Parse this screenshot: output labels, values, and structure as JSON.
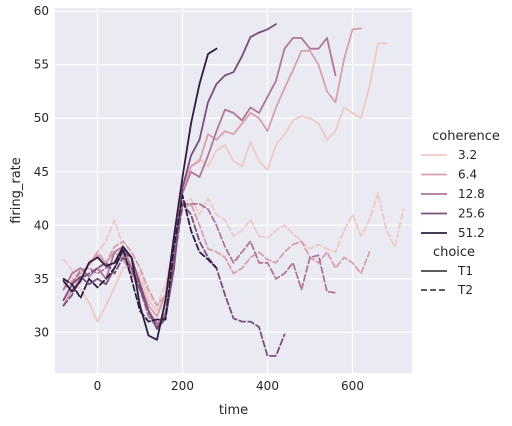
{
  "chart_data": {
    "type": "line",
    "xlabel": "time",
    "ylabel": "firing_rate",
    "xlim": [
      -100,
      740
    ],
    "ylim": [
      26.2,
      60.3
    ],
    "xticks": [
      0,
      200,
      400,
      600
    ],
    "yticks": [
      30,
      35,
      40,
      45,
      50,
      55,
      60
    ],
    "grid": true,
    "legend": {
      "placement": "right",
      "hue_title": "coherence",
      "style_title": "choice",
      "hue_entries": [
        {
          "label": "3.2",
          "color": "#f0c9c4"
        },
        {
          "label": "6.4",
          "color": "#d8a0ad"
        },
        {
          "label": "12.8",
          "color": "#b07598"
        },
        {
          "label": "25.6",
          "color": "#7a4e7c"
        },
        {
          "label": "51.2",
          "color": "#2d1e3e"
        }
      ],
      "style_entries": [
        {
          "label": "T1",
          "dash": "solid"
        },
        {
          "label": "T2",
          "dash": "dashed"
        }
      ]
    },
    "series": [
      {
        "coherence": "3.2",
        "choice": "T1",
        "color": "#f0c9c4",
        "dash": "solid",
        "x": [
          -80,
          -60,
          -40,
          -20,
          0,
          20,
          40,
          60,
          80,
          100,
          120,
          140,
          160,
          180,
          200,
          220,
          240,
          260,
          280,
          300,
          320,
          340,
          360,
          380,
          400,
          420,
          440,
          460,
          480,
          500,
          520,
          540,
          560,
          580,
          600,
          620,
          640,
          660,
          680
        ],
        "y": [
          34.5,
          35.2,
          34.0,
          32.8,
          31.0,
          32.5,
          34.2,
          36.0,
          36.5,
          35.0,
          33.0,
          32.0,
          33.5,
          38.0,
          44.0,
          45.5,
          46.2,
          45.5,
          47.0,
          47.5,
          46.0,
          45.5,
          47.8,
          46.0,
          45.2,
          47.5,
          48.5,
          49.8,
          50.2,
          50.0,
          49.5,
          48.0,
          48.8,
          51.0,
          50.5,
          50.0,
          53.0,
          57.0,
          57.0
        ]
      },
      {
        "coherence": "3.2",
        "choice": "T2",
        "color": "#f0c9c4",
        "dash": "dashed",
        "x": [
          -80,
          -60,
          -40,
          -20,
          0,
          20,
          40,
          60,
          80,
          100,
          120,
          140,
          160,
          180,
          200,
          220,
          240,
          260,
          280,
          300,
          320,
          340,
          360,
          380,
          400,
          420,
          440,
          460,
          480,
          500,
          520,
          540,
          560,
          580,
          600,
          620,
          640,
          660,
          680,
          700,
          720
        ],
        "y": [
          36.8,
          35.8,
          34.5,
          36.5,
          37.5,
          38.5,
          40.5,
          38.0,
          36.0,
          35.5,
          33.5,
          32.5,
          34.5,
          38.0,
          42.0,
          42.5,
          41.0,
          42.5,
          41.0,
          40.5,
          39.0,
          39.5,
          40.5,
          39.0,
          38.8,
          39.5,
          40.0,
          39.2,
          38.5,
          37.8,
          38.2,
          37.8,
          37.5,
          39.5,
          41.0,
          39.0,
          40.5,
          43.0,
          39.5,
          38.0,
          41.5
        ]
      },
      {
        "coherence": "6.4",
        "choice": "T1",
        "color": "#d8a0ad",
        "dash": "solid",
        "x": [
          -80,
          -60,
          -40,
          -20,
          0,
          20,
          40,
          60,
          80,
          100,
          120,
          140,
          160,
          180,
          200,
          220,
          240,
          260,
          280,
          300,
          320,
          340,
          360,
          380,
          400,
          420,
          440,
          460,
          480,
          500,
          520,
          540,
          560,
          580,
          600,
          620
        ],
        "y": [
          32.5,
          34.0,
          35.0,
          36.5,
          37.2,
          36.5,
          37.5,
          36.8,
          35.5,
          34.5,
          32.5,
          31.5,
          33.5,
          38.5,
          43.5,
          45.5,
          46.0,
          48.5,
          48.0,
          48.8,
          48.5,
          49.5,
          50.5,
          50.0,
          48.8,
          51.0,
          52.8,
          54.5,
          56.3,
          56.3,
          55.0,
          52.5,
          51.5,
          55.5,
          58.3,
          58.4
        ]
      },
      {
        "coherence": "6.4",
        "choice": "T2",
        "color": "#d8a0ad",
        "dash": "dashed",
        "x": [
          -80,
          -60,
          -40,
          -20,
          0,
          20,
          40,
          60,
          80,
          100,
          120,
          140,
          160,
          180,
          200,
          220,
          240,
          260,
          280,
          300,
          320,
          340,
          360,
          380,
          400,
          420,
          440,
          460,
          480,
          500,
          520,
          540,
          560,
          580,
          600,
          620,
          640
        ],
        "y": [
          34.0,
          34.8,
          35.5,
          36.2,
          37.5,
          36.5,
          38.0,
          38.5,
          37.5,
          36.0,
          34.0,
          32.5,
          33.5,
          37.5,
          41.5,
          42.0,
          40.0,
          37.8,
          37.5,
          37.0,
          35.5,
          36.0,
          37.0,
          37.5,
          36.8,
          36.5,
          37.5,
          38.2,
          38.5,
          37.0,
          36.5,
          37.5,
          36.0,
          37.0,
          36.5,
          35.5,
          37.5
        ]
      },
      {
        "coherence": "12.8",
        "choice": "T1",
        "color": "#b07598",
        "dash": "solid",
        "x": [
          -80,
          -60,
          -40,
          -20,
          0,
          20,
          40,
          60,
          80,
          100,
          120,
          140,
          160,
          180,
          200,
          220,
          240,
          260,
          280,
          300,
          320,
          340,
          360,
          380,
          400,
          420,
          440,
          460,
          480,
          500,
          520,
          540,
          560
        ],
        "y": [
          34.0,
          35.5,
          36.0,
          35.2,
          36.0,
          35.0,
          37.5,
          38.0,
          36.0,
          34.5,
          32.0,
          30.8,
          31.8,
          36.5,
          43.0,
          45.0,
          44.5,
          46.5,
          48.8,
          50.8,
          50.5,
          49.8,
          51.0,
          50.5,
          52.0,
          53.5,
          56.5,
          57.5,
          57.5,
          56.5,
          56.5,
          57.5,
          54.0
        ]
      },
      {
        "coherence": "12.8",
        "choice": "T2",
        "color": "#b07598",
        "dash": "dashed",
        "x": [
          -80,
          -60,
          -40,
          -20,
          0,
          20,
          40,
          60,
          80,
          100,
          120,
          140,
          160,
          180,
          200,
          220,
          240,
          260,
          280,
          300,
          320,
          340,
          360,
          380,
          400,
          420,
          440,
          460,
          480,
          500,
          520,
          540,
          560
        ],
        "y": [
          33.0,
          34.5,
          35.8,
          36.0,
          35.5,
          36.0,
          36.5,
          37.5,
          35.5,
          34.0,
          31.5,
          30.5,
          31.5,
          37.5,
          42.0,
          42.0,
          42.0,
          41.5,
          40.0,
          38.0,
          36.5,
          37.5,
          38.5,
          36.5,
          36.5,
          35.0,
          35.5,
          36.5,
          34.0,
          37.0,
          37.2,
          33.8,
          33.7
        ]
      },
      {
        "coherence": "25.6",
        "choice": "T1",
        "color": "#7a4e7c",
        "dash": "solid",
        "x": [
          -80,
          -60,
          -40,
          -20,
          0,
          20,
          40,
          60,
          80,
          100,
          120,
          140,
          160,
          180,
          200,
          220,
          240,
          260,
          280,
          300,
          320,
          340,
          360,
          380,
          400,
          420
        ],
        "y": [
          33.0,
          34.5,
          35.2,
          34.5,
          35.0,
          34.5,
          36.0,
          37.5,
          37.0,
          34.5,
          32.0,
          30.3,
          31.3,
          36.0,
          43.5,
          46.5,
          48.0,
          51.5,
          53.2,
          54.0,
          54.3,
          55.8,
          57.6,
          58.0,
          58.3,
          58.8
        ]
      },
      {
        "coherence": "25.6",
        "choice": "T2",
        "color": "#7a4e7c",
        "dash": "dashed",
        "x": [
          -80,
          -60,
          -40,
          -20,
          0,
          20,
          40,
          60,
          80,
          100,
          120,
          140,
          160,
          180,
          200,
          220,
          240,
          260,
          280,
          300,
          320,
          340,
          360,
          380,
          400,
          420,
          440
        ],
        "y": [
          32.5,
          33.5,
          35.0,
          35.5,
          36.0,
          36.5,
          35.5,
          37.0,
          36.0,
          34.0,
          32.0,
          30.5,
          31.5,
          36.5,
          42.0,
          41.0,
          38.5,
          37.0,
          36.0,
          33.5,
          31.3,
          31.0,
          31.0,
          30.5,
          27.8,
          27.8,
          29.8
        ]
      },
      {
        "coherence": "51.2",
        "choice": "T1",
        "color": "#2d1e3e",
        "dash": "solid",
        "x": [
          -80,
          -60,
          -40,
          -20,
          0,
          20,
          40,
          60,
          80,
          100,
          120,
          140,
          160,
          180,
          200,
          220,
          240,
          260,
          280
        ],
        "y": [
          34.8,
          33.8,
          34.8,
          36.5,
          37.0,
          36.2,
          36.5,
          38.0,
          37.0,
          32.5,
          29.7,
          29.3,
          33.0,
          39.0,
          44.5,
          49.5,
          53.2,
          56.0,
          56.5
        ]
      },
      {
        "coherence": "51.2",
        "choice": "T2",
        "color": "#2d1e3e",
        "dash": "dashed",
        "x": [
          -80,
          -60,
          -40,
          -20,
          0,
          20,
          40,
          60,
          80,
          100,
          120,
          140,
          160,
          180,
          200,
          220,
          240,
          260,
          280
        ],
        "y": [
          35.0,
          34.5,
          33.2,
          35.0,
          34.2,
          35.0,
          36.0,
          37.8,
          35.0,
          32.0,
          31.0,
          31.2,
          31.2,
          38.0,
          42.8,
          39.5,
          37.5,
          36.8,
          36.0
        ]
      }
    ]
  }
}
